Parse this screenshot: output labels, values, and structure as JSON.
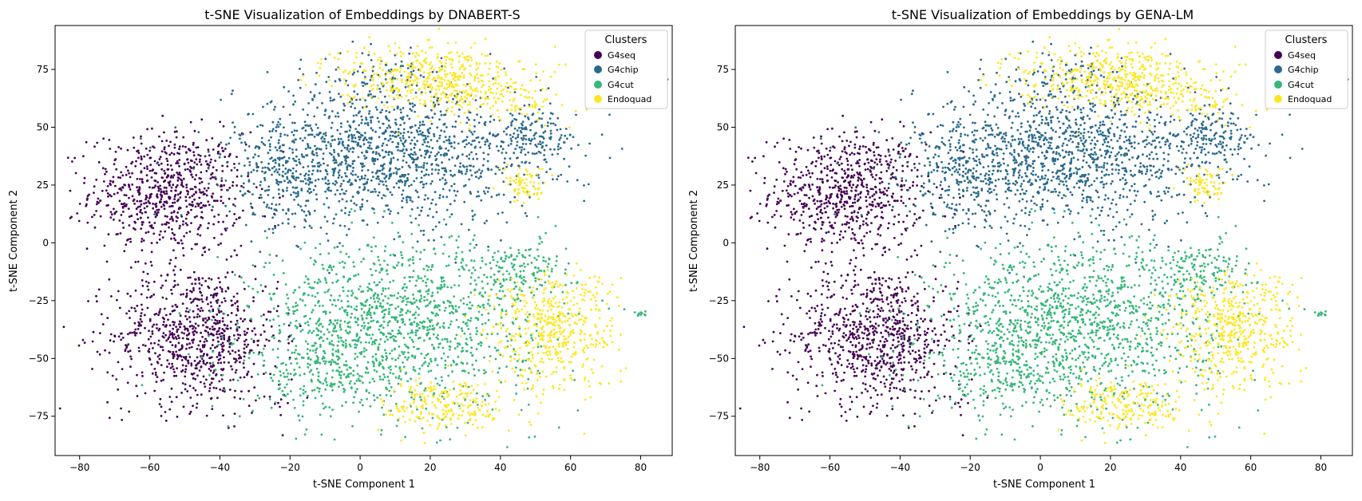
{
  "chart_data": [
    {
      "type": "scatter",
      "title": "t-SNE Visualization of Embeddings by DNABERT-S",
      "xlabel": "t-SNE Component 1",
      "ylabel": "t-SNE Component 2",
      "xlim": [
        -87,
        89
      ],
      "ylim": [
        -92,
        94
      ],
      "xticks": [
        -80,
        -60,
        -40,
        -20,
        0,
        20,
        40,
        60,
        80
      ],
      "yticks": [
        -75,
        -50,
        -25,
        0,
        25,
        50,
        75
      ],
      "xtick_labels": [
        "−80",
        "−60",
        "−40",
        "−20",
        "0",
        "20",
        "40",
        "60",
        "80"
      ],
      "ytick_labels": [
        "−75",
        "−50",
        "−25",
        "0",
        "25",
        "50",
        "75"
      ],
      "grid": false,
      "legend": {
        "title": "Clusters",
        "placement": "top-right"
      },
      "series": [
        {
          "name": "G4seq",
          "color": "#440154",
          "clusters": [
            {
              "cx": -55,
              "cy": 22,
              "sx": 11,
              "sy": 13,
              "n": 700
            },
            {
              "cx": -47,
              "cy": -40,
              "sx": 12,
              "sy": 15,
              "n": 800
            },
            {
              "cx": -22,
              "cy": -68,
              "sx": 3,
              "sy": 3,
              "n": 12
            }
          ]
        },
        {
          "name": "G4chip",
          "color": "#2b6a8c",
          "clusters": [
            {
              "cx": 8,
              "cy": 38,
              "sx": 22,
              "sy": 15,
              "n": 1300
            },
            {
              "cx": -22,
              "cy": 28,
              "sx": 8,
              "sy": 12,
              "n": 200
            },
            {
              "cx": 48,
              "cy": 45,
              "sx": 7,
              "sy": 6,
              "n": 150
            },
            {
              "cx": 5,
              "cy": 72,
              "sx": 8,
              "sy": 5,
              "n": 80
            }
          ]
        },
        {
          "name": "G4cut",
          "color": "#35b779",
          "clusters": [
            {
              "cx": 10,
              "cy": -35,
              "sx": 20,
              "sy": 18,
              "n": 1300
            },
            {
              "cx": 45,
              "cy": -12,
              "sx": 8,
              "sy": 7,
              "n": 150
            },
            {
              "cx": -10,
              "cy": -55,
              "sx": 10,
              "sy": 10,
              "n": 200
            },
            {
              "cx": 80,
              "cy": -31,
              "sx": 0.8,
              "sy": 0.8,
              "n": 10
            }
          ]
        },
        {
          "name": "Endoquad",
          "color": "#fde725",
          "clusters": [
            {
              "cx": 20,
              "cy": 72,
              "sx": 13,
              "sy": 7,
              "n": 450
            },
            {
              "cx": 55,
              "cy": -38,
              "sx": 9,
              "sy": 13,
              "n": 500
            },
            {
              "cx": 25,
              "cy": -70,
              "sx": 9,
              "sy": 6,
              "n": 220
            },
            {
              "cx": 47,
              "cy": 25,
              "sx": 3,
              "sy": 4,
              "n": 70
            },
            {
              "cx": 40,
              "cy": 62,
              "sx": 10,
              "sy": 5,
              "n": 120
            }
          ]
        }
      ]
    },
    {
      "type": "scatter",
      "title": "t-SNE Visualization of Embeddings by GENA-LM",
      "xlabel": "t-SNE Component 1",
      "ylabel": "t-SNE Component 2",
      "xlim": [
        -87,
        89
      ],
      "ylim": [
        -92,
        94
      ],
      "xticks": [
        -80,
        -60,
        -40,
        -20,
        0,
        20,
        40,
        60,
        80
      ],
      "yticks": [
        -75,
        -50,
        -25,
        0,
        25,
        50,
        75
      ],
      "xtick_labels": [
        "−80",
        "−60",
        "−40",
        "−20",
        "0",
        "20",
        "40",
        "60",
        "80"
      ],
      "ytick_labels": [
        "−75",
        "−50",
        "−25",
        "0",
        "25",
        "50",
        "75"
      ],
      "grid": false,
      "legend": {
        "title": "Clusters",
        "placement": "top-right"
      },
      "series": [
        {
          "name": "G4seq",
          "color": "#440154",
          "clusters": [
            {
              "cx": -55,
              "cy": 22,
              "sx": 11,
              "sy": 13,
              "n": 700
            },
            {
              "cx": -47,
              "cy": -40,
              "sx": 12,
              "sy": 15,
              "n": 800
            },
            {
              "cx": -22,
              "cy": -68,
              "sx": 3,
              "sy": 3,
              "n": 12
            }
          ]
        },
        {
          "name": "G4chip",
          "color": "#2b6a8c",
          "clusters": [
            {
              "cx": 8,
              "cy": 38,
              "sx": 22,
              "sy": 15,
              "n": 1300
            },
            {
              "cx": -22,
              "cy": 28,
              "sx": 8,
              "sy": 12,
              "n": 200
            },
            {
              "cx": 48,
              "cy": 45,
              "sx": 7,
              "sy": 6,
              "n": 150
            },
            {
              "cx": 5,
              "cy": 72,
              "sx": 8,
              "sy": 5,
              "n": 80
            }
          ]
        },
        {
          "name": "G4cut",
          "color": "#35b779",
          "clusters": [
            {
              "cx": 10,
              "cy": -35,
              "sx": 20,
              "sy": 18,
              "n": 1300
            },
            {
              "cx": 45,
              "cy": -12,
              "sx": 8,
              "sy": 7,
              "n": 150
            },
            {
              "cx": -10,
              "cy": -55,
              "sx": 10,
              "sy": 10,
              "n": 200
            },
            {
              "cx": 80,
              "cy": -31,
              "sx": 0.8,
              "sy": 0.8,
              "n": 10
            }
          ]
        },
        {
          "name": "Endoquad",
          "color": "#fde725",
          "clusters": [
            {
              "cx": 20,
              "cy": 72,
              "sx": 13,
              "sy": 7,
              "n": 450
            },
            {
              "cx": 55,
              "cy": -38,
              "sx": 9,
              "sy": 13,
              "n": 500
            },
            {
              "cx": 25,
              "cy": -70,
              "sx": 9,
              "sy": 6,
              "n": 220
            },
            {
              "cx": 47,
              "cy": 25,
              "sx": 3,
              "sy": 4,
              "n": 70
            },
            {
              "cx": 40,
              "cy": 62,
              "sx": 10,
              "sy": 5,
              "n": 120
            }
          ]
        }
      ]
    }
  ]
}
